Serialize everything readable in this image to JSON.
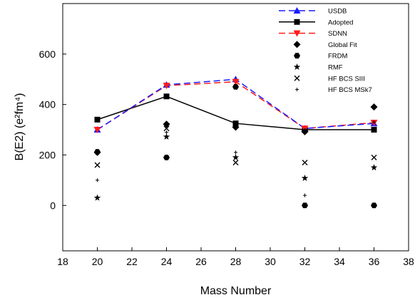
{
  "chart_data": {
    "type": "line",
    "xlabel": "Mass Number",
    "ylabel": "B(E2) (e²fm⁴)",
    "xlim": [
      18,
      38
    ],
    "ylim": [
      -180,
      800
    ],
    "xticks": [
      "18",
      "20",
      "22",
      "24",
      "26",
      "28",
      "30",
      "32",
      "34",
      "36",
      "38"
    ],
    "yticks": [
      "0",
      "200",
      "400",
      "600"
    ],
    "x": [
      20,
      24,
      28,
      32,
      36
    ],
    "legend_position": "top-right",
    "series": [
      {
        "name": "USDB",
        "color": "#1a1aff",
        "style": "dashed-line",
        "marker": "triangle-up",
        "values": [
          300,
          478,
          500,
          305,
          325
        ]
      },
      {
        "name": "Adopted",
        "color": "#000000",
        "style": "solid-line",
        "marker": "square",
        "values": [
          340,
          432,
          325,
          300,
          300
        ]
      },
      {
        "name": "SDNN",
        "color": "#ff1a1a",
        "style": "dashed-line",
        "marker": "triangle-down",
        "values": [
          300,
          475,
          490,
          305,
          328
        ]
      },
      {
        "name": "Global Fit",
        "color": "#000000",
        "style": "markers",
        "marker": "diamond",
        "values": [
          210,
          322,
          310,
          292,
          390
        ]
      },
      {
        "name": "FRDM",
        "color": "#000000",
        "style": "markers",
        "marker": "hexagon",
        "values": [
          212,
          190,
          470,
          0,
          0
        ]
      },
      {
        "name": "RMF",
        "color": "#000000",
        "style": "markers",
        "marker": "star",
        "values": [
          30,
          272,
          190,
          108,
          150
        ]
      },
      {
        "name": "HF BCS SIII",
        "color": "#000000",
        "style": "markers",
        "marker": "x",
        "values": [
          160,
          305,
          170,
          170,
          190
        ]
      },
      {
        "name": "HF BCS MSk7",
        "color": "#000000",
        "style": "markers",
        "marker": "plus",
        "values": [
          100,
          290,
          210,
          40,
          330
        ]
      }
    ]
  }
}
